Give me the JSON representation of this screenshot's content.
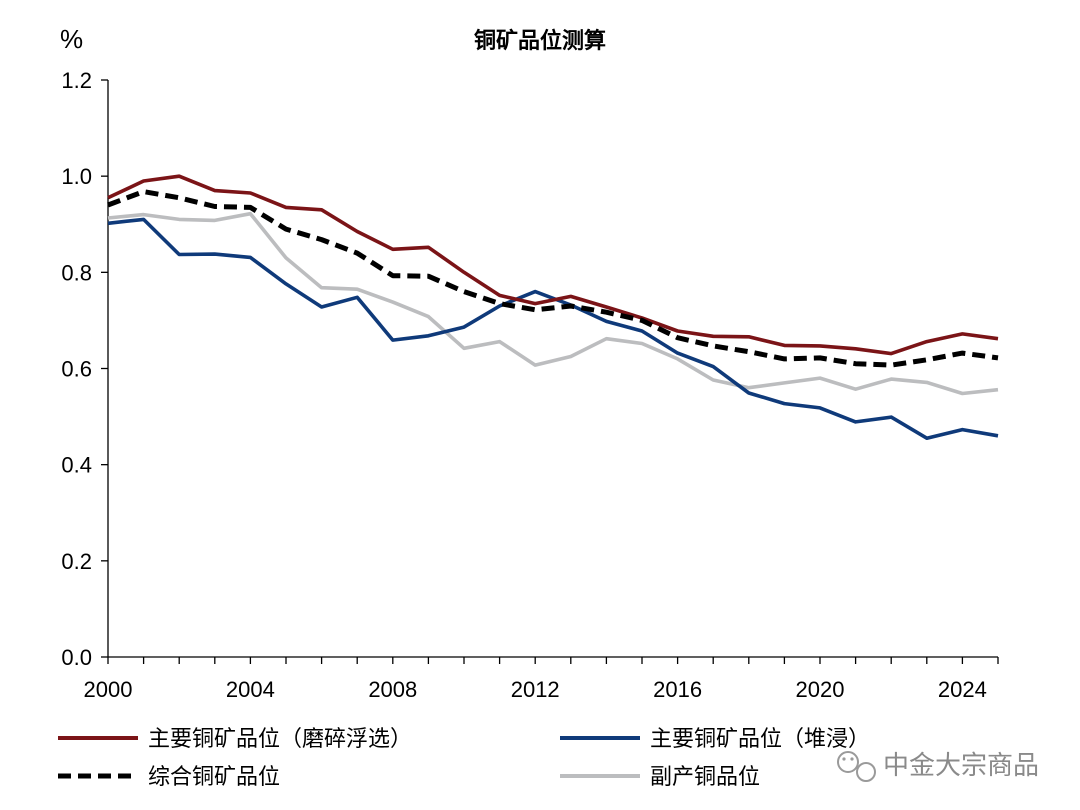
{
  "chart_data": {
    "type": "line",
    "title": "铜矿品位测算",
    "ylabel": "%",
    "xlabel": "",
    "xlim": [
      2000,
      2025
    ],
    "ylim": [
      0.0,
      1.2
    ],
    "x_ticks": [
      "2000",
      "2004",
      "2008",
      "2012",
      "2016",
      "2020",
      "2024"
    ],
    "y_ticks": [
      "0.0",
      "0.2",
      "0.4",
      "0.6",
      "0.8",
      "1.0",
      "1.2"
    ],
    "x": [
      2000,
      2001,
      2002,
      2003,
      2004,
      2005,
      2006,
      2007,
      2008,
      2009,
      2010,
      2011,
      2012,
      2013,
      2014,
      2015,
      2016,
      2017,
      2018,
      2019,
      2020,
      2021,
      2022,
      2023,
      2024,
      2025
    ],
    "series": [
      {
        "name": "主要铜矿品位（磨碎浮选）",
        "color": "#7b1417",
        "style": "solid",
        "values": [
          0.955,
          0.99,
          1.0,
          0.97,
          0.965,
          0.935,
          0.93,
          0.885,
          0.848,
          0.852,
          0.8,
          0.752,
          0.735,
          0.75,
          0.728,
          0.705,
          0.678,
          0.667,
          0.666,
          0.648,
          0.647,
          0.641,
          0.631,
          0.656,
          0.672,
          0.662
        ]
      },
      {
        "name": "主要铜矿品位（堆浸）",
        "color": "#0f3a7a",
        "style": "solid",
        "values": [
          0.902,
          0.91,
          0.837,
          0.838,
          0.831,
          0.776,
          0.728,
          0.748,
          0.659,
          0.668,
          0.686,
          0.73,
          0.76,
          0.732,
          0.698,
          0.678,
          0.632,
          0.604,
          0.549,
          0.527,
          0.518,
          0.489,
          0.499,
          0.455,
          0.473,
          0.46
        ]
      },
      {
        "name": "综合铜矿品位",
        "color": "#000000",
        "style": "dashed",
        "values": [
          0.94,
          0.968,
          0.955,
          0.937,
          0.935,
          0.89,
          0.868,
          0.84,
          0.793,
          0.792,
          0.76,
          0.735,
          0.722,
          0.73,
          0.717,
          0.7,
          0.664,
          0.647,
          0.635,
          0.62,
          0.622,
          0.61,
          0.607,
          0.618,
          0.632,
          0.622
        ]
      },
      {
        "name": "副产铜品位",
        "color": "#bcbdbf",
        "style": "solid",
        "values": [
          0.913,
          0.92,
          0.91,
          0.908,
          0.922,
          0.83,
          0.768,
          0.765,
          0.738,
          0.708,
          0.642,
          0.656,
          0.607,
          0.625,
          0.662,
          0.652,
          0.62,
          0.576,
          0.56,
          0.57,
          0.58,
          0.557,
          0.578,
          0.571,
          0.548,
          0.556
        ]
      }
    ],
    "legend_position": "bottom",
    "grid": false
  },
  "watermark": {
    "text": "中金大宗商品",
    "icon": "wechat-icon"
  }
}
